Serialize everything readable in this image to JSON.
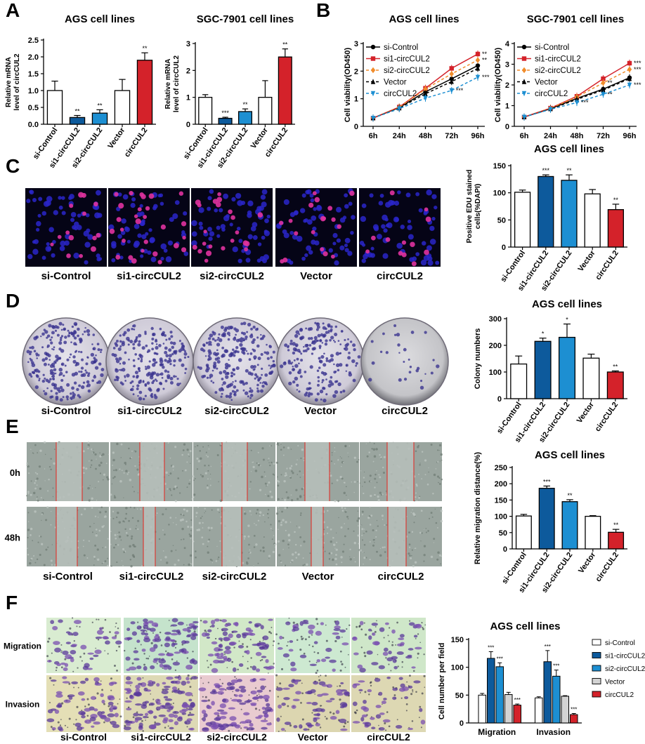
{
  "panel_letters": [
    "A",
    "B",
    "C",
    "D",
    "E",
    "F"
  ],
  "colors": {
    "white": "#ffffff",
    "dark_blue": "#0d5a9c",
    "light_blue": "#1d8fd2",
    "red": "#d4222a",
    "grey": "#d3d3d3",
    "orange": "#f08c2b"
  },
  "conditions": [
    "si-Control",
    "si1-circCUL2",
    "si2-circCUL2",
    "Vector",
    "circCUL2"
  ],
  "row_labels_e": [
    "0h",
    "48h"
  ],
  "row_labels_f": [
    "Migration",
    "Invasion"
  ],
  "chart_data": [
    {
      "id": "A1",
      "type": "bar",
      "title": "AGS cell lines",
      "ylabel": "Relative mRNA level of circCUL2",
      "categories": [
        "si-Control",
        "si1-circCUL2",
        "si2-circCUL2",
        "Vector",
        "circCUL2"
      ],
      "values": [
        1.0,
        0.2,
        0.33,
        1.0,
        1.9
      ],
      "errors": [
        0.28,
        0.06,
        0.1,
        0.33,
        0.22
      ],
      "stars": [
        "",
        "**",
        "**",
        "",
        "**"
      ],
      "colors": [
        "#ffffff",
        "#0d5a9c",
        "#1d8fd2",
        "#ffffff",
        "#d4222a"
      ],
      "ylim": [
        0,
        2.5
      ],
      "yticks": [
        "0.0",
        "0.5",
        "1.0",
        "1.5",
        "2.0",
        "2.5"
      ]
    },
    {
      "id": "A2",
      "type": "bar",
      "title": "SGC-7901 cell lines",
      "ylabel": "Relative mRNA level of circCUL2",
      "categories": [
        "si-Control",
        "si1-circCUL2",
        "si2-circCUL2",
        "Vector",
        "circCUL2"
      ],
      "values": [
        1.0,
        0.22,
        0.47,
        1.0,
        2.5
      ],
      "errors": [
        0.1,
        0.04,
        0.1,
        0.62,
        0.3
      ],
      "stars": [
        "",
        "***",
        "**",
        "",
        "**"
      ],
      "colors": [
        "#ffffff",
        "#0d5a9c",
        "#1d8fd2",
        "#ffffff",
        "#d4222a"
      ],
      "ylim": [
        0,
        3
      ],
      "yticks": [
        "0",
        "1",
        "2",
        "3"
      ]
    },
    {
      "id": "B1",
      "type": "line",
      "title": "AGS cell lines",
      "ylabel": "Cell viability(OD450)",
      "x": [
        "6h",
        "24h",
        "48h",
        "72h",
        "96h"
      ],
      "ylim": [
        0,
        3
      ],
      "yticks": [
        "0",
        "1",
        "2",
        "3"
      ],
      "series": [
        {
          "name": "si-Control",
          "values": [
            0.3,
            0.68,
            1.25,
            1.72,
            2.2
          ],
          "color": "#000000",
          "dash": false,
          "marker": "circle"
        },
        {
          "name": "si1-circCUL2",
          "values": [
            0.3,
            0.7,
            1.38,
            2.1,
            2.62
          ],
          "color": "#d4222a",
          "dash": false,
          "marker": "square"
        },
        {
          "name": "si2-circCUL2",
          "values": [
            0.3,
            0.69,
            1.35,
            1.9,
            2.4
          ],
          "color": "#f08c2b",
          "dash": true,
          "marker": "diamond"
        },
        {
          "name": "Vector",
          "values": [
            0.3,
            0.66,
            1.18,
            1.62,
            2.1
          ],
          "color": "#000000",
          "dash": true,
          "marker": "triangle"
        },
        {
          "name": "circCUL2",
          "values": [
            0.3,
            0.64,
            1.02,
            1.3,
            1.78
          ],
          "color": "#1d8fd2",
          "dash": true,
          "marker": "triangle-down"
        }
      ],
      "stars": [
        {
          "x": "96h",
          "y": 2.62,
          "t": "**"
        },
        {
          "x": "96h",
          "y": 2.4,
          "t": "**"
        },
        {
          "x": "96h",
          "y": 1.78,
          "t": "***"
        },
        {
          "x": "72h",
          "y": 1.3,
          "t": "***"
        }
      ]
    },
    {
      "id": "B2",
      "type": "line",
      "title": "SGC-7901 cell lines",
      "ylabel": "Cell viability(OD450)",
      "x": [
        "6h",
        "24h",
        "48h",
        "72h",
        "96h"
      ],
      "ylim": [
        0,
        4
      ],
      "yticks": [
        "0",
        "1",
        "2",
        "3",
        "4"
      ],
      "series": [
        {
          "name": "si-Control",
          "values": [
            0.45,
            0.85,
            1.35,
            1.8,
            2.35
          ],
          "color": "#000000",
          "dash": false,
          "marker": "circle"
        },
        {
          "name": "si1-circCUL2",
          "values": [
            0.45,
            0.88,
            1.45,
            2.3,
            3.05
          ],
          "color": "#d4222a",
          "dash": false,
          "marker": "square"
        },
        {
          "name": "si2-circCUL2",
          "values": [
            0.45,
            0.87,
            1.42,
            2.1,
            2.75
          ],
          "color": "#f08c2b",
          "dash": true,
          "marker": "diamond"
        },
        {
          "name": "Vector",
          "values": [
            0.45,
            0.84,
            1.3,
            1.75,
            2.3
          ],
          "color": "#000000",
          "dash": true,
          "marker": "triangle"
        },
        {
          "name": "circCUL2",
          "values": [
            0.45,
            0.82,
            1.15,
            1.55,
            2.0
          ],
          "color": "#1d8fd2",
          "dash": true,
          "marker": "triangle-down"
        }
      ],
      "stars": [
        {
          "x": "96h",
          "y": 3.05,
          "t": "***"
        },
        {
          "x": "96h",
          "y": 2.75,
          "t": "***"
        },
        {
          "x": "96h",
          "y": 2.0,
          "t": "***"
        },
        {
          "x": "72h",
          "y": 2.1,
          "t": "**"
        },
        {
          "x": "72h",
          "y": 1.55,
          "t": "**"
        },
        {
          "x": "48h",
          "y": 1.15,
          "t": "***"
        }
      ]
    },
    {
      "id": "C",
      "type": "bar",
      "title": "AGS cell lines",
      "ylabel": "Positive EDU stained cells(%DAPI)",
      "categories": [
        "si-Control",
        "si1-circCUL2",
        "si2-circCUL2",
        "Vector",
        "circCUL2"
      ],
      "values": [
        101,
        130,
        123,
        98,
        69
      ],
      "errors": [
        4,
        3,
        10,
        8,
        10
      ],
      "stars": [
        "",
        "***",
        "**",
        "",
        "**"
      ],
      "colors": [
        "#ffffff",
        "#0d5a9c",
        "#1d8fd2",
        "#ffffff",
        "#d4222a"
      ],
      "ylim": [
        0,
        150
      ],
      "yticks": [
        "0",
        "50",
        "100",
        "150"
      ]
    },
    {
      "id": "D",
      "type": "bar",
      "title": "AGS cell lines",
      "ylabel": "Colony numbers",
      "categories": [
        "si-Control",
        "si1-circCUL2",
        "si2-circCUL2",
        "Vector",
        "circCUL2"
      ],
      "values": [
        130,
        215,
        230,
        152,
        100
      ],
      "errors": [
        30,
        12,
        50,
        15,
        4
      ],
      "stars": [
        "",
        "*",
        "*",
        "",
        "**"
      ],
      "colors": [
        "#ffffff",
        "#0d5a9c",
        "#1d8fd2",
        "#ffffff",
        "#d4222a"
      ],
      "ylim": [
        0,
        300
      ],
      "yticks": [
        "0",
        "100",
        "200",
        "300"
      ]
    },
    {
      "id": "E",
      "type": "bar",
      "title": "AGS cell lines",
      "ylabel": "Relative migration distance(%)",
      "categories": [
        "si-Control",
        "si1-circCUL2",
        "si2-circCUL2",
        "Vector",
        "circCUL2"
      ],
      "values": [
        101,
        186,
        145,
        100,
        51
      ],
      "errors": [
        5,
        7,
        6,
        2,
        9
      ],
      "stars": [
        "",
        "***",
        "**",
        "",
        "**"
      ],
      "colors": [
        "#ffffff",
        "#0d5a9c",
        "#1d8fd2",
        "#ffffff",
        "#d4222a"
      ],
      "ylim": [
        0,
        250
      ],
      "yticks": [
        "0",
        "50",
        "100",
        "150",
        "200",
        "250"
      ]
    },
    {
      "id": "F",
      "type": "bar",
      "title": "AGS cell lines",
      "ylabel": "Cell number per field",
      "categories": [
        "Migration",
        "Invasion"
      ],
      "series": [
        {
          "name": "si-Control",
          "values": [
            50,
            45
          ],
          "errors": [
            3,
            2
          ],
          "stars": [
            "",
            ""
          ],
          "color": "#ffffff"
        },
        {
          "name": "si1-circCUL2",
          "values": [
            116,
            110
          ],
          "errors": [
            12,
            20
          ],
          "stars": [
            "***",
            "***"
          ],
          "color": "#0d5a9c"
        },
        {
          "name": "si2-circCUL2",
          "values": [
            101,
            84
          ],
          "errors": [
            7,
            11
          ],
          "stars": [
            "***",
            "***"
          ],
          "color": "#1d8fd2"
        },
        {
          "name": "Vector",
          "values": [
            51,
            48
          ],
          "errors": [
            4,
            1
          ],
          "stars": [
            "",
            ""
          ],
          "color": "#d3d3d3"
        },
        {
          "name": "circCUL2",
          "values": [
            32,
            15
          ],
          "errors": [
            2,
            2
          ],
          "stars": [
            "***",
            "***"
          ],
          "color": "#d4222a"
        }
      ],
      "ylim": [
        0,
        150
      ],
      "yticks": [
        "0",
        "50",
        "100",
        "150"
      ],
      "legend": "right"
    }
  ]
}
